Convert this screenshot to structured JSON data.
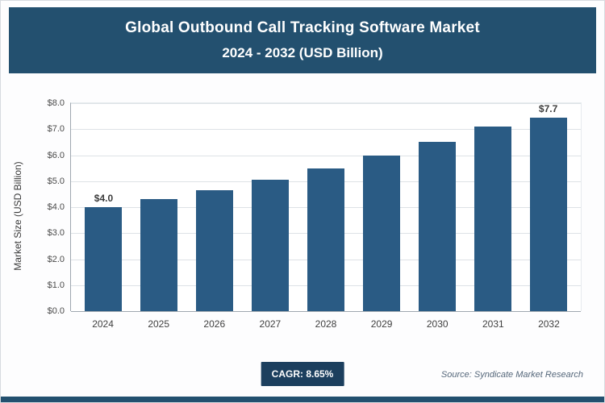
{
  "header": {
    "title_line1": "Global Outbound Call Tracking Software Market",
    "title_line2": "2024 - 2032 (USD Billion)"
  },
  "chart_data": {
    "type": "bar",
    "title": "Global Outbound Call Tracking Software Market 2024 - 2032 (USD Billion)",
    "categories": [
      "2024",
      "2025",
      "2026",
      "2027",
      "2028",
      "2029",
      "2030",
      "2031",
      "2032"
    ],
    "values": [
      4.0,
      4.3,
      4.65,
      5.05,
      5.5,
      6.0,
      6.5,
      7.1,
      7.7
    ],
    "xlabel": "",
    "ylabel": "Market Size (USD Billion)",
    "ylim": [
      0,
      8
    ],
    "ytick_labels": [
      "$0.0",
      "$1.0",
      "$2.0",
      "$3.0",
      "$4.0",
      "$5.0",
      "$6.0",
      "$7.0",
      "$8.0"
    ],
    "bar_labels": {
      "0": "$4.0",
      "8": "$7.7"
    },
    "grid": true,
    "legend": "none"
  },
  "footer": {
    "cagr_label": "CAGR: 8.65%",
    "source": "Source: Syndicate Market Research"
  },
  "colors": {
    "header_bg": "#23506F",
    "bar": "#2A5B84",
    "badge_bg": "#1C3F5E",
    "accent_strip": "#23506F"
  }
}
